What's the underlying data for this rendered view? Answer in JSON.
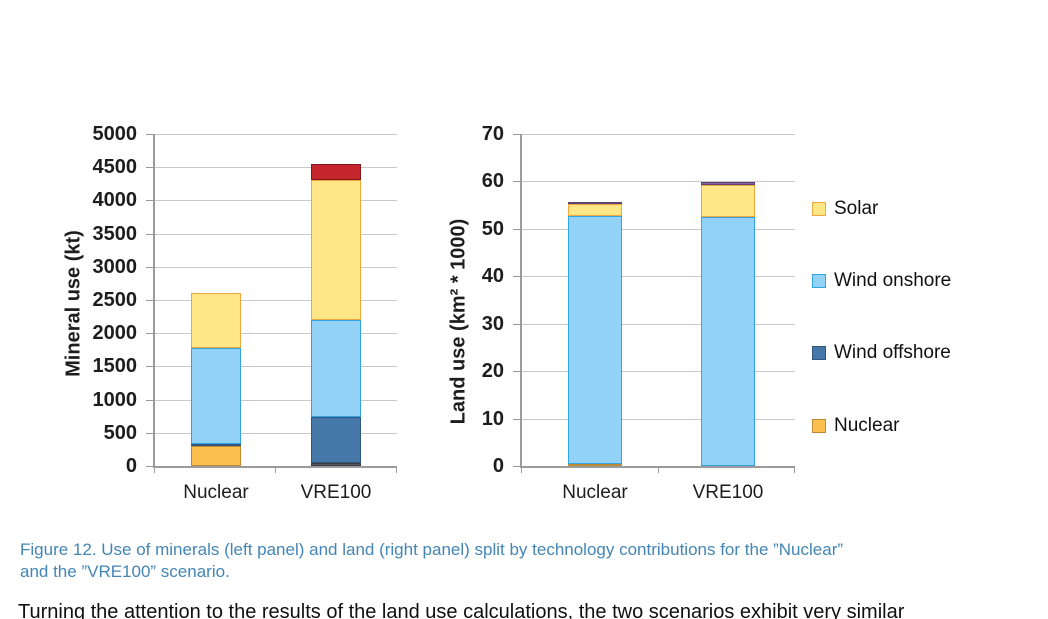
{
  "figure": {
    "caption_line1": "Figure 12. Use of minerals (left panel) and land (right panel) split by technology contributions for the ”Nuclear”",
    "caption_line2": "and the ”VRE100” scenario.",
    "caption_color": "#4386b6"
  },
  "body_text": "Turning the attention to the results of the land use calculations, the two scenarios exhibit very similar",
  "legend": {
    "items": [
      {
        "label": "Solar",
        "fill": "#FFE687",
        "border": "#EFA73E"
      },
      {
        "label": "Wind onshore",
        "fill": "#92D2F6",
        "border": "#35A2E4"
      },
      {
        "label": "Wind offshore",
        "fill": "#4578A9",
        "border": "#30587C"
      },
      {
        "label": "Nuclear",
        "fill": "#FBBF4F",
        "border": "#BE8A33"
      }
    ]
  },
  "chart_data": [
    {
      "type": "bar",
      "stacked": true,
      "title": "",
      "xlabel": "",
      "ylabel": "Mineral use (kt)",
      "categories": [
        "Nuclear",
        "VRE100"
      ],
      "ylim": [
        0,
        5000
      ],
      "ytick_step": 500,
      "yticks": [
        "5000",
        "4500",
        "4000",
        "3500",
        "3000",
        "2500",
        "2000",
        "1500",
        "1000",
        "500",
        "0"
      ],
      "grid": true,
      "legend_position": "right-of-second-chart",
      "series": [
        {
          "name": "unlabeled-gray",
          "fill": "#55555E",
          "border": "#3B3B42",
          "values": [
            0,
            50
          ]
        },
        {
          "name": "Nuclear",
          "fill": "#FBBF4F",
          "border": "#BE8A33",
          "values": [
            300,
            0
          ]
        },
        {
          "name": "Wind offshore",
          "fill": "#4578A9",
          "border": "#30587C",
          "values": [
            30,
            690
          ]
        },
        {
          "name": "Wind onshore",
          "fill": "#92D2F6",
          "border": "#35A2E4",
          "values": [
            1450,
            1460
          ]
        },
        {
          "name": "Solar",
          "fill": "#FFE687",
          "border": "#EFA73E",
          "values": [
            820,
            2110
          ]
        },
        {
          "name": "unlabeled-red",
          "fill": "#C5262D",
          "border": "#83181D",
          "values": [
            0,
            240
          ]
        }
      ]
    },
    {
      "type": "bar",
      "stacked": true,
      "title": "",
      "xlabel": "",
      "ylabel": "Land use (km² * 1000)",
      "categories": [
        "Nuclear",
        "VRE100"
      ],
      "ylim": [
        0,
        70
      ],
      "ytick_step": 10,
      "yticks": [
        "70",
        "60",
        "50",
        "40",
        "30",
        "20",
        "10",
        "0"
      ],
      "grid": true,
      "series": [
        {
          "name": "Nuclear",
          "fill": "#FBBF4F",
          "border": "#BE8A33",
          "values": [
            0.4,
            0
          ]
        },
        {
          "name": "Wind onshore",
          "fill": "#92D2F6",
          "border": "#35A2E4",
          "values": [
            52.3,
            52.4
          ]
        },
        {
          "name": "Solar",
          "fill": "#FFE687",
          "border": "#EFA73E",
          "values": [
            2.5,
            6.8
          ]
        },
        {
          "name": "unlabeled-purple",
          "fill": "#8064A2",
          "border": "#5B4375",
          "values": [
            0.5,
            0.6
          ]
        }
      ]
    }
  ]
}
